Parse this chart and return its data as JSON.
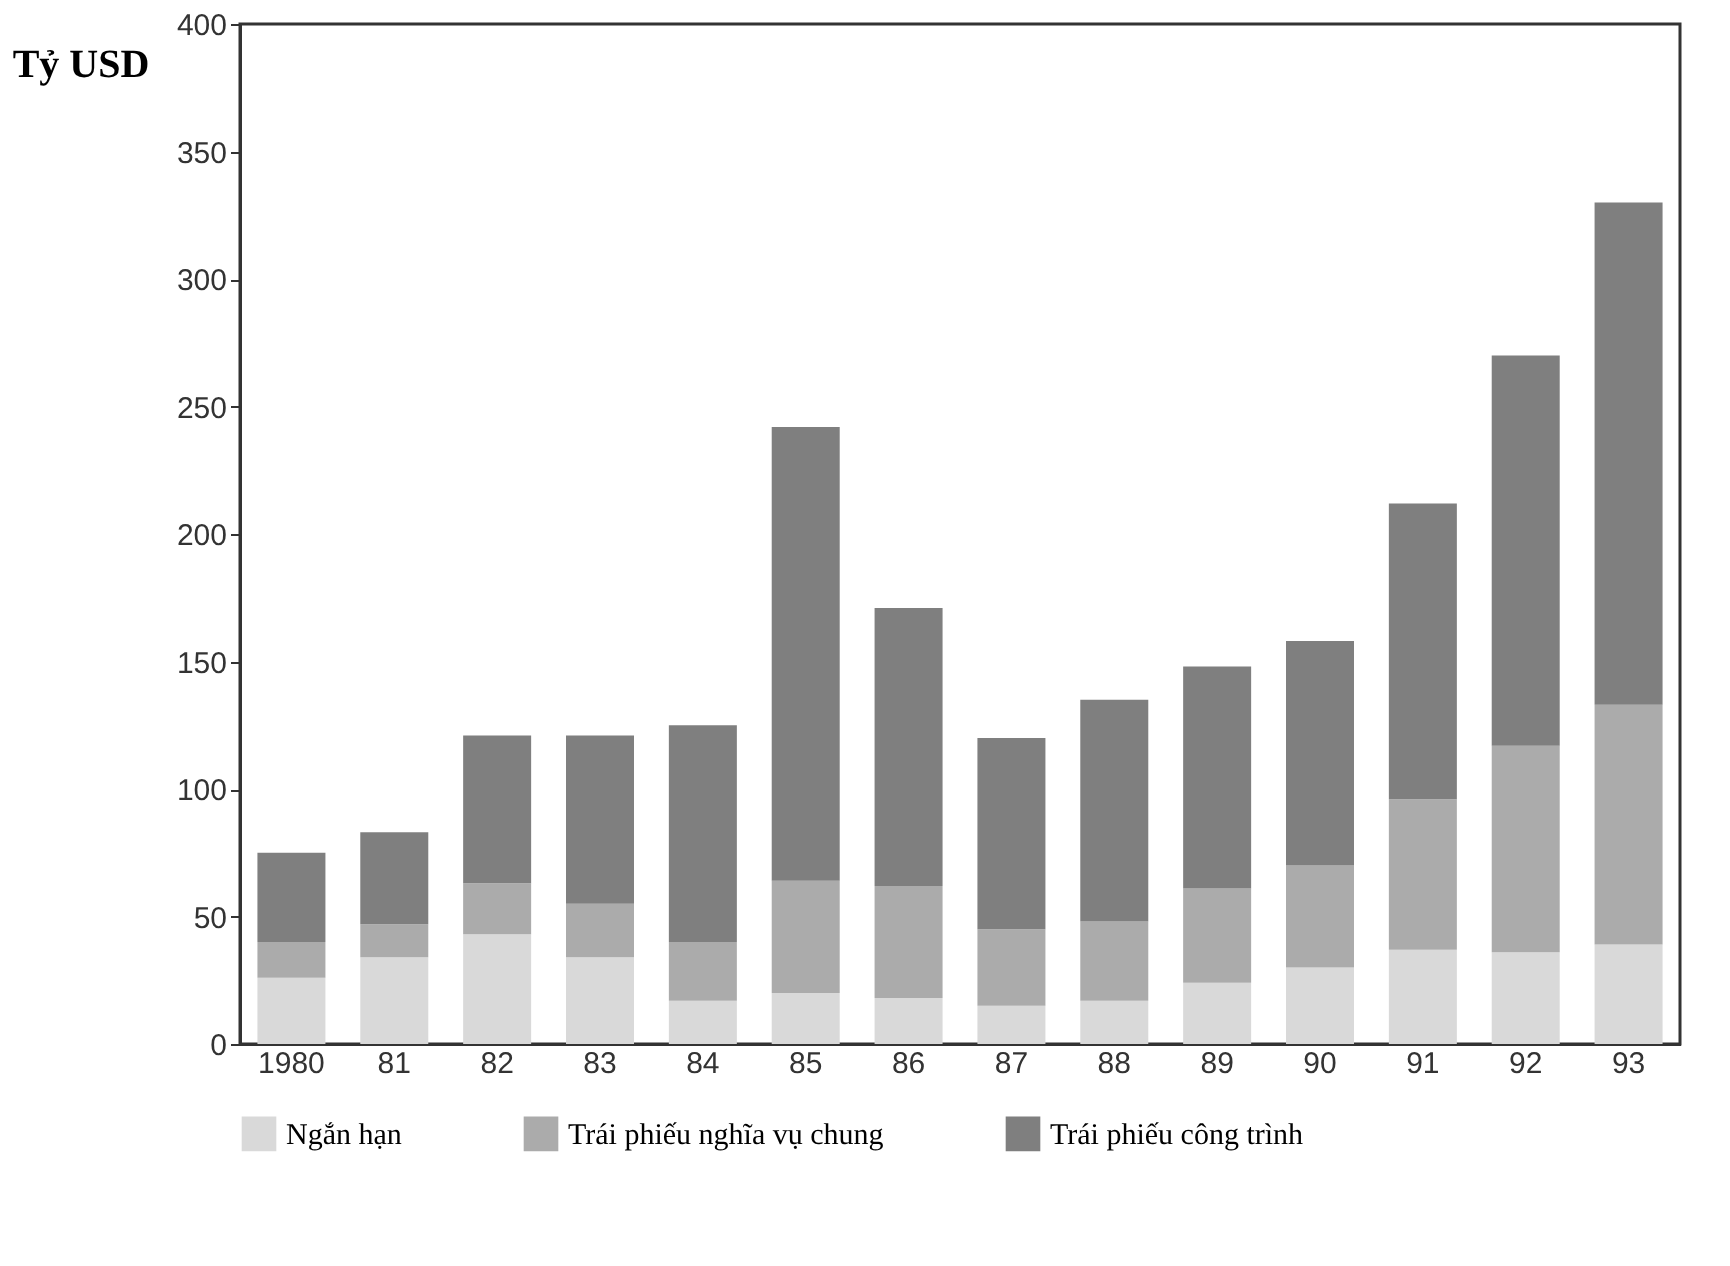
{
  "chart_data": {
    "type": "bar",
    "stacked": true,
    "ylabel": "Tỷ USD",
    "categories": [
      "1980",
      "81",
      "82",
      "83",
      "84",
      "85",
      "86",
      "87",
      "88",
      "89",
      "90",
      "91",
      "92",
      "93"
    ],
    "series": [
      {
        "name": "Ngắn hạn",
        "color": "#d9d9d9",
        "values": [
          26,
          34,
          43,
          34,
          17,
          20,
          18,
          15,
          17,
          24,
          30,
          37,
          36,
          39
        ]
      },
      {
        "name": "Trái phiếu nghĩa vụ chung",
        "color": "#ababab",
        "values": [
          14,
          13,
          20,
          21,
          23,
          44,
          44,
          30,
          31,
          37,
          40,
          59,
          81,
          94
        ]
      },
      {
        "name": "Trái phiếu công trình",
        "color": "#7f7f7f",
        "values": [
          35,
          36,
          58,
          66,
          85,
          178,
          109,
          75,
          87,
          87,
          88,
          116,
          153,
          197
        ]
      }
    ],
    "ylim": [
      0,
      400
    ],
    "yticks": [
      0,
      50,
      100,
      150,
      200,
      250,
      300,
      350,
      400
    ],
    "grid": false,
    "legend": "bottom"
  }
}
